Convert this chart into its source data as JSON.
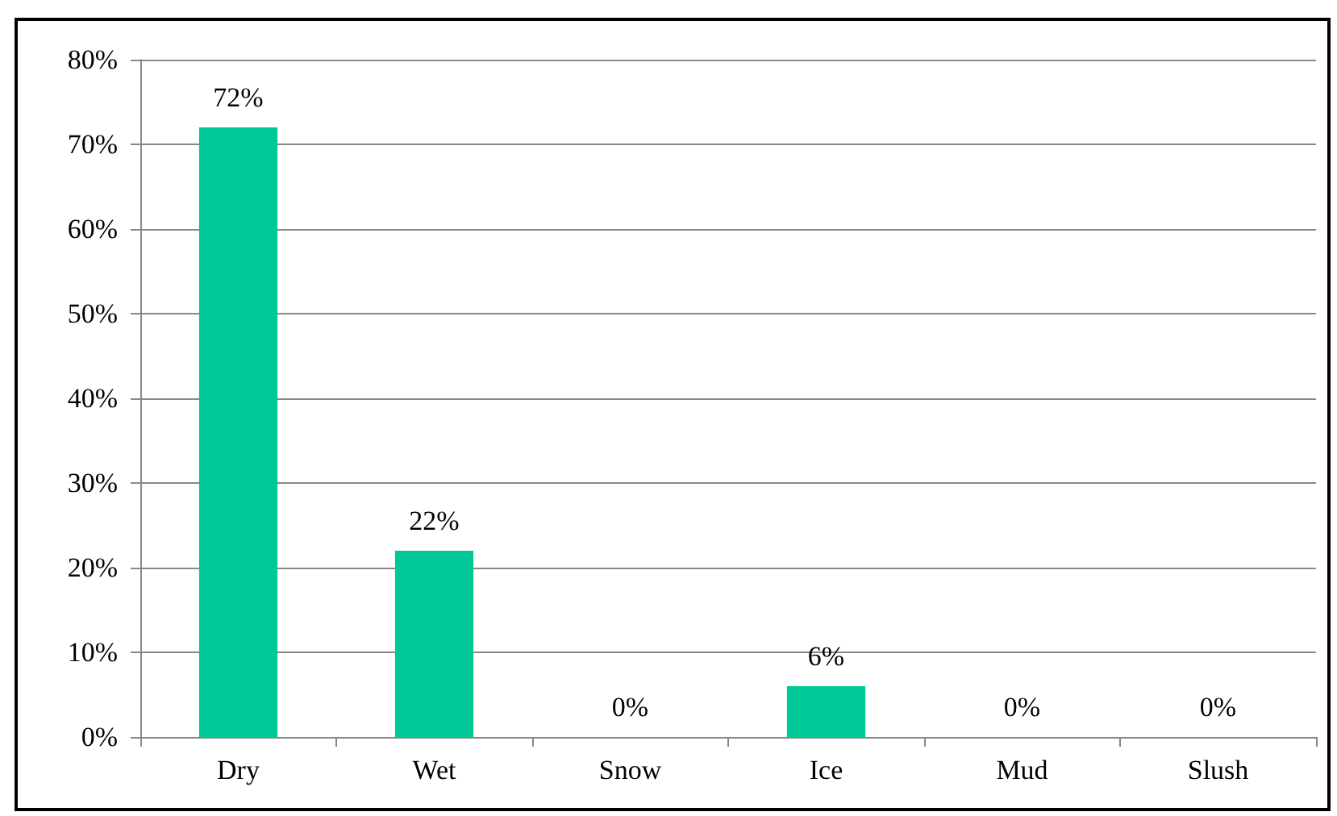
{
  "chart_data": {
    "type": "bar",
    "categories": [
      "Dry",
      "Wet",
      "Snow",
      "Ice",
      "Mud",
      "Slush"
    ],
    "values": [
      72,
      22,
      0,
      6,
      0,
      0
    ],
    "value_labels": [
      "72%",
      "22%",
      "0%",
      "6%",
      "0%",
      "0%"
    ],
    "color": "#00c896",
    "ylim": [
      0,
      80
    ],
    "yticks": [
      {
        "value": 0,
        "label": "0%"
      },
      {
        "value": 10,
        "label": "10%"
      },
      {
        "value": 20,
        "label": "20%"
      },
      {
        "value": 30,
        "label": "30%"
      },
      {
        "value": 40,
        "label": "40%"
      },
      {
        "value": 50,
        "label": "50%"
      },
      {
        "value": 60,
        "label": "60%"
      },
      {
        "value": 70,
        "label": "70%"
      },
      {
        "value": 80,
        "label": "80%"
      }
    ],
    "grid": "y"
  }
}
